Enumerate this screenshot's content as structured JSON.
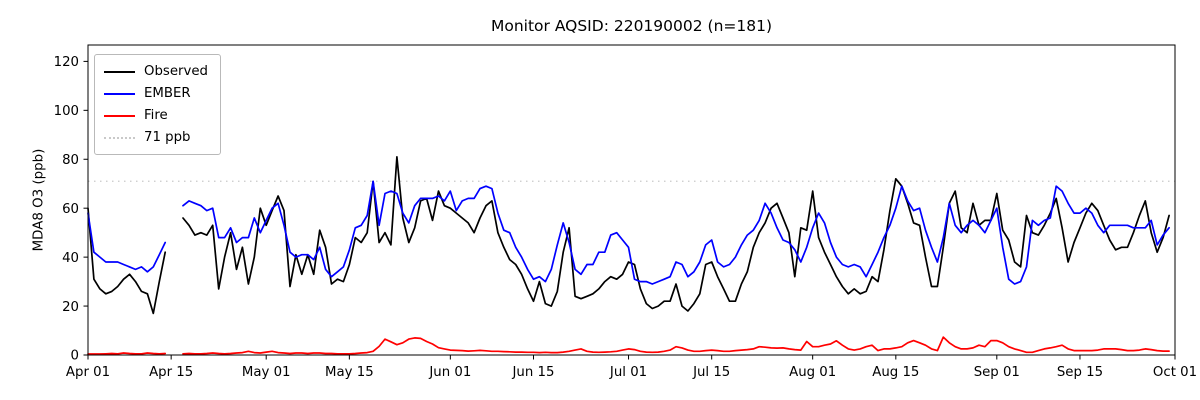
{
  "chart_data": {
    "type": "line",
    "title": "Monitor AQSID: 220190002 (n=181)",
    "xlabel": "",
    "ylabel": "MDA8 O3 (ppb)",
    "ylim": [
      0,
      126.7
    ],
    "yticks": [
      0,
      20,
      40,
      60,
      80,
      100,
      120
    ],
    "x_total_days": 183,
    "xticks": [
      {
        "day": 0,
        "label": "Apr 01"
      },
      {
        "day": 14,
        "label": "Apr 15"
      },
      {
        "day": 30,
        "label": "May 01"
      },
      {
        "day": 44,
        "label": "May 15"
      },
      {
        "day": 61,
        "label": "Jun 01"
      },
      {
        "day": 75,
        "label": "Jun 15"
      },
      {
        "day": 91,
        "label": "Jul 01"
      },
      {
        "day": 105,
        "label": "Jul 15"
      },
      {
        "day": 122,
        "label": "Aug 01"
      },
      {
        "day": 136,
        "label": "Aug 15"
      },
      {
        "day": 153,
        "label": "Sep 01"
      },
      {
        "day": 167,
        "label": "Sep 15"
      },
      {
        "day": 183,
        "label": "Oct 01"
      }
    ],
    "grid": false,
    "legend_position": "upper-left",
    "threshold": {
      "label": "71 ppb",
      "value": 71,
      "color": "#c9c9c9",
      "style": "dotted"
    },
    "series": [
      {
        "name": "Observed",
        "color": "#000000",
        "style": "solid",
        "values": [
          60,
          31,
          27,
          25,
          26,
          28,
          31,
          33,
          30,
          26,
          25,
          17,
          30,
          42,
          null,
          null,
          56,
          53,
          49,
          50,
          49,
          53,
          27,
          40,
          50,
          35,
          44,
          29,
          40,
          60,
          53,
          59,
          65,
          59,
          28,
          41,
          33,
          41,
          33,
          51,
          44,
          29,
          31,
          30,
          37,
          48,
          46,
          50,
          71,
          46,
          50,
          45,
          81,
          56,
          46,
          52,
          63,
          64,
          55,
          67,
          61,
          60,
          58,
          56,
          54,
          50,
          56,
          61,
          63,
          50,
          44,
          39,
          37,
          33,
          27,
          22,
          30,
          21,
          20,
          26,
          42,
          52,
          24,
          23,
          24,
          25,
          27,
          30,
          32,
          31,
          33,
          38,
          37,
          27,
          21,
          19,
          20,
          22,
          22,
          29,
          20,
          18,
          21,
          25,
          37,
          38,
          32,
          27,
          22,
          22,
          29,
          34,
          44,
          50,
          54,
          60,
          62,
          56,
          50,
          32,
          52,
          51,
          67,
          48,
          42,
          37,
          32,
          28,
          25,
          27,
          25,
          26,
          32,
          30,
          43,
          59,
          72,
          69,
          62,
          54,
          53,
          40,
          28,
          28,
          44,
          62,
          67,
          52,
          50,
          62,
          53,
          55,
          55,
          66,
          51,
          47,
          38,
          36,
          57,
          50,
          49,
          53,
          58,
          64,
          52,
          38,
          46,
          52,
          58,
          62,
          59,
          53,
          47,
          43,
          44,
          44,
          50,
          57,
          63,
          50,
          42,
          48,
          57
        ]
      },
      {
        "name": "EMBER",
        "color": "#0000ff",
        "style": "solid",
        "values": [
          58,
          42,
          40,
          38,
          38,
          38,
          37,
          36,
          35,
          36,
          34,
          36,
          41,
          46,
          null,
          null,
          61,
          63,
          62,
          61,
          59,
          60,
          48,
          48,
          52,
          46,
          48,
          48,
          56,
          50,
          55,
          60,
          62,
          53,
          42,
          40,
          41,
          41,
          39,
          44,
          35,
          32,
          34,
          36,
          43,
          52,
          53,
          57,
          71,
          53,
          66,
          67,
          66,
          58,
          54,
          61,
          64,
          64,
          64,
          65,
          63,
          67,
          59,
          63,
          64,
          64,
          68,
          69,
          68,
          58,
          51,
          50,
          44,
          40,
          35,
          31,
          32,
          30,
          35,
          45,
          54,
          46,
          35,
          33,
          37,
          37,
          42,
          42,
          49,
          50,
          47,
          44,
          31,
          30,
          30,
          29,
          30,
          31,
          32,
          38,
          37,
          32,
          34,
          38,
          45,
          47,
          38,
          36,
          37,
          40,
          45,
          49,
          51,
          55,
          62,
          58,
          52,
          47,
          46,
          43,
          38,
          44,
          52,
          58,
          54,
          46,
          40,
          37,
          36,
          37,
          36,
          32,
          37,
          42,
          48,
          53,
          60,
          69,
          63,
          59,
          60,
          51,
          44,
          38,
          48,
          62,
          53,
          50,
          53,
          55,
          53,
          50,
          55,
          60,
          44,
          31,
          29,
          30,
          36,
          55,
          53,
          55,
          56,
          69,
          67,
          62,
          58,
          58,
          60,
          58,
          53,
          50,
          53,
          53,
          53,
          53,
          52,
          52,
          52,
          55,
          45,
          49,
          52
        ]
      },
      {
        "name": "Fire",
        "color": "#ff0000",
        "style": "solid",
        "values": [
          0.4,
          0.4,
          0.4,
          0.5,
          0.6,
          0.5,
          0.8,
          0.6,
          0.5,
          0.5,
          0.8,
          0.6,
          0.5,
          0.6,
          null,
          null,
          0.5,
          0.6,
          0.5,
          0.5,
          0.6,
          0.8,
          0.6,
          0.5,
          0.6,
          0.8,
          1.0,
          1.5,
          1.0,
          0.8,
          1.2,
          1.5,
          1.0,
          0.8,
          0.6,
          0.8,
          0.8,
          0.6,
          0.8,
          0.8,
          0.6,
          0.6,
          0.5,
          0.5,
          0.5,
          0.6,
          0.8,
          1.0,
          1.5,
          3.5,
          6.5,
          5.4,
          4.2,
          5.0,
          6.5,
          7.0,
          6.8,
          5.5,
          4.5,
          3.0,
          2.5,
          2.0,
          1.9,
          1.8,
          1.6,
          1.7,
          1.9,
          1.7,
          1.5,
          1.5,
          1.4,
          1.3,
          1.2,
          1.2,
          1.1,
          1.1,
          1.0,
          1.1,
          1.0,
          1.0,
          1.2,
          1.5,
          2.0,
          2.5,
          1.5,
          1.2,
          1.1,
          1.2,
          1.3,
          1.5,
          2.0,
          2.5,
          2.2,
          1.5,
          1.2,
          1.1,
          1.2,
          1.5,
          2.0,
          3.4,
          2.9,
          2.0,
          1.5,
          1.5,
          1.8,
          2.0,
          1.8,
          1.5,
          1.5,
          1.8,
          2.0,
          2.2,
          2.5,
          3.4,
          3.2,
          2.9,
          2.8,
          2.9,
          2.5,
          2.2,
          2.0,
          5.5,
          3.4,
          3.4,
          4.0,
          4.5,
          5.8,
          4.0,
          2.5,
          2.0,
          2.5,
          3.4,
          4.0,
          1.8,
          2.5,
          2.5,
          2.9,
          3.4,
          5.0,
          5.9,
          5.0,
          4.0,
          2.5,
          1.8,
          7.3,
          5.0,
          3.4,
          2.5,
          2.5,
          2.9,
          4.0,
          3.4,
          5.9,
          5.9,
          5.0,
          3.4,
          2.5,
          1.8,
          1.1,
          1.1,
          1.8,
          2.5,
          2.9,
          3.4,
          4.0,
          2.5,
          1.8,
          1.8,
          1.8,
          1.8,
          2.0,
          2.5,
          2.5,
          2.5,
          2.2,
          1.8,
          1.8,
          2.0,
          2.5,
          2.2,
          1.8,
          1.6,
          1.6
        ]
      }
    ]
  }
}
